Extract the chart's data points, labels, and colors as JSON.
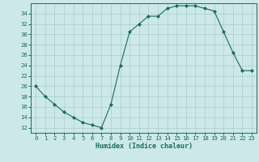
{
  "title": "",
  "xlabel": "Humidex (Indice chaleur)",
  "x": [
    0,
    1,
    2,
    3,
    4,
    5,
    6,
    7,
    8,
    9,
    10,
    11,
    12,
    13,
    14,
    15,
    16,
    17,
    18,
    19,
    20,
    21,
    22,
    23
  ],
  "y": [
    20,
    18,
    16.5,
    15,
    14,
    13,
    12.5,
    12,
    16.5,
    24,
    30.5,
    32,
    33.5,
    33.5,
    35,
    35.5,
    35.5,
    35.5,
    35,
    34.5,
    30.5,
    26.5,
    23,
    23
  ],
  "xlim": [
    -0.5,
    23.5
  ],
  "ylim": [
    11,
    36
  ],
  "yticks": [
    12,
    14,
    16,
    18,
    20,
    22,
    24,
    26,
    28,
    30,
    32,
    34
  ],
  "xticks": [
    0,
    1,
    2,
    3,
    4,
    5,
    6,
    7,
    8,
    9,
    10,
    11,
    12,
    13,
    14,
    15,
    16,
    17,
    18,
    19,
    20,
    21,
    22,
    23
  ],
  "line_color": "#1a6b5a",
  "marker": "D",
  "marker_size": 2.0,
  "linewidth": 0.8,
  "bg_color": "#cce8ea",
  "grid_color": "#aacccc",
  "xlabel_fontsize": 6.0,
  "tick_fontsize": 5.2
}
